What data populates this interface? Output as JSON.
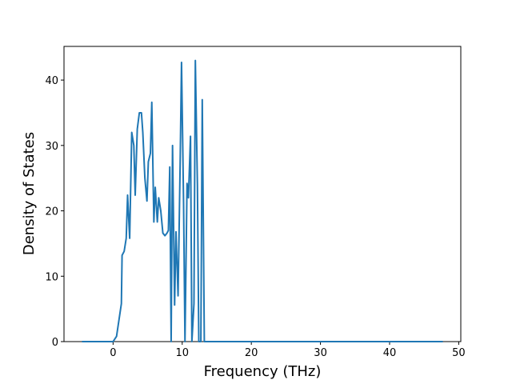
{
  "chart_data": {
    "type": "line",
    "xlabel": "Frequency (THz)",
    "ylabel": "Density of States",
    "x": [
      -4.5,
      0,
      0.5,
      1.2,
      1.3,
      1.6,
      1.9,
      2.1,
      2.4,
      2.7,
      3.0,
      3.2,
      3.5,
      3.8,
      4.1,
      4.3,
      4.6,
      4.9,
      5.1,
      5.4,
      5.6,
      5.9,
      6.1,
      6.4,
      6.6,
      6.9,
      7.2,
      7.5,
      7.8,
      8.0,
      8.2,
      8.4,
      8.6,
      8.9,
      9.1,
      9.4,
      9.7,
      9.9,
      10.2,
      10.4,
      10.7,
      10.9,
      11.2,
      11.4,
      11.7,
      11.9,
      12.2,
      12.4,
      12.7,
      12.9,
      13.2,
      47.7
    ],
    "values": [
      0,
      0,
      0.8,
      5.8,
      13.2,
      13.8,
      15.8,
      22.4,
      15.8,
      32,
      30,
      22.4,
      32.5,
      35,
      35,
      32,
      25,
      21.5,
      27.5,
      28.8,
      36.6,
      18.3,
      23.6,
      18.3,
      22,
      20,
      16.6,
      16.2,
      16.6,
      17,
      26.7,
      0,
      30,
      5.6,
      16.8,
      7,
      27,
      42.7,
      21,
      0,
      24.2,
      22,
      31.4,
      0,
      5.8,
      43,
      24,
      0,
      0,
      37,
      0,
      0
    ],
    "color": "#1f77b4",
    "xlim": [
      -7.1,
      50.3
    ],
    "ylim": [
      0,
      45.15
    ],
    "xticks": [
      0,
      10,
      20,
      30,
      40,
      50
    ],
    "yticks": [
      0,
      10,
      20,
      30,
      40
    ]
  }
}
